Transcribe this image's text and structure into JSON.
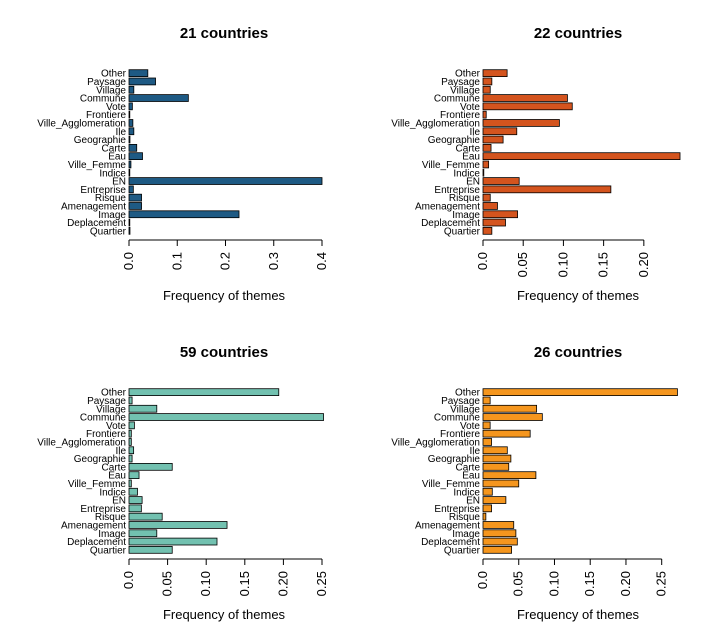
{
  "chart_data": [
    {
      "type": "bar",
      "orientation": "horizontal",
      "title": "21 countries",
      "xlabel": "Frequency of themes",
      "xlim": [
        0,
        0.4
      ],
      "xticks": [
        "0.0",
        "0.1",
        "0.2",
        "0.3",
        "0.4"
      ],
      "color": "#1E5A84",
      "categories": [
        "Other",
        "Paysage",
        "Village",
        "Commune",
        "Vote",
        "Frontiere",
        "Ville_Agglomeration",
        "Ile",
        "Geographie",
        "Carte",
        "Eau",
        "Ville_Femme",
        "Indice",
        "EN",
        "Entreprise",
        "Risque",
        "Amenagement",
        "Image",
        "Deplacement",
        "Quartier"
      ],
      "values": [
        0.039,
        0.055,
        0.01,
        0.123,
        0.007,
        0.001,
        0.008,
        0.01,
        0.002,
        0.016,
        0.028,
        0.004,
        0.001,
        0.4,
        0.009,
        0.026,
        0.026,
        0.228,
        0.001,
        0.002
      ]
    },
    {
      "type": "bar",
      "orientation": "horizontal",
      "title": "22 countries",
      "xlabel": "Frequency of themes",
      "xlim": [
        0,
        0.24
      ],
      "xticks": [
        "0.0",
        "0.05",
        "0.10",
        "0.15",
        "0.20"
      ],
      "color": "#D4541E",
      "categories": [
        "Other",
        "Paysage",
        "Village",
        "Commune",
        "Vote",
        "Frontiere",
        "Ville_Agglomeration",
        "Ile",
        "Geographie",
        "Carte",
        "Eau",
        "Ville_Femme",
        "Indice",
        "EN",
        "Entreprise",
        "Risque",
        "Amenagement",
        "Image",
        "Deplacement",
        "Quartier"
      ],
      "values": [
        0.03,
        0.011,
        0.009,
        0.105,
        0.111,
        0.004,
        0.095,
        0.042,
        0.025,
        0.01,
        0.245,
        0.007,
        0.001,
        0.045,
        0.159,
        0.009,
        0.018,
        0.043,
        0.028,
        0.011
      ]
    },
    {
      "type": "bar",
      "orientation": "horizontal",
      "title": "59 countries",
      "xlabel": "Frequency of themes",
      "xlim": [
        0,
        0.25
      ],
      "xticks": [
        "0.0",
        "0.05",
        "0.10",
        "0.15",
        "0.20",
        "0.25"
      ],
      "color": "#72C1B0",
      "categories": [
        "Other",
        "Paysage",
        "Village",
        "Commune",
        "Vote",
        "Frontiere",
        "Ville_Agglomeration",
        "Ile",
        "Geographie",
        "Carte",
        "Eau",
        "Ville_Femme",
        "Indice",
        "EN",
        "Entreprise",
        "Risque",
        "Amenagement",
        "Image",
        "Deplacement",
        "Quartier"
      ],
      "values": [
        0.194,
        0.004,
        0.036,
        0.252,
        0.007,
        0.003,
        0.003,
        0.006,
        0.004,
        0.056,
        0.013,
        0.003,
        0.011,
        0.017,
        0.016,
        0.043,
        0.127,
        0.036,
        0.114,
        0.056
      ]
    },
    {
      "type": "bar",
      "orientation": "horizontal",
      "title": "26 countries",
      "xlabel": "Frequency of themes",
      "xlim": [
        0,
        0.27
      ],
      "xticks": [
        "0.0",
        "0.05",
        "0.10",
        "0.15",
        "0.20",
        "0.25"
      ],
      "color": "#F5961E",
      "categories": [
        "Other",
        "Paysage",
        "Village",
        "Commune",
        "Vote",
        "Frontiere",
        "Ville_Agglomeration",
        "Ile",
        "Geographie",
        "Carte",
        "Eau",
        "Ville_Femme",
        "Indice",
        "EN",
        "Entreprise",
        "Risque",
        "Amenagement",
        "Image",
        "Deplacement",
        "Quartier"
      ],
      "values": [
        0.272,
        0.01,
        0.075,
        0.083,
        0.01,
        0.066,
        0.012,
        0.034,
        0.039,
        0.036,
        0.074,
        0.05,
        0.013,
        0.032,
        0.012,
        0.004,
        0.043,
        0.046,
        0.048,
        0.04
      ]
    }
  ]
}
